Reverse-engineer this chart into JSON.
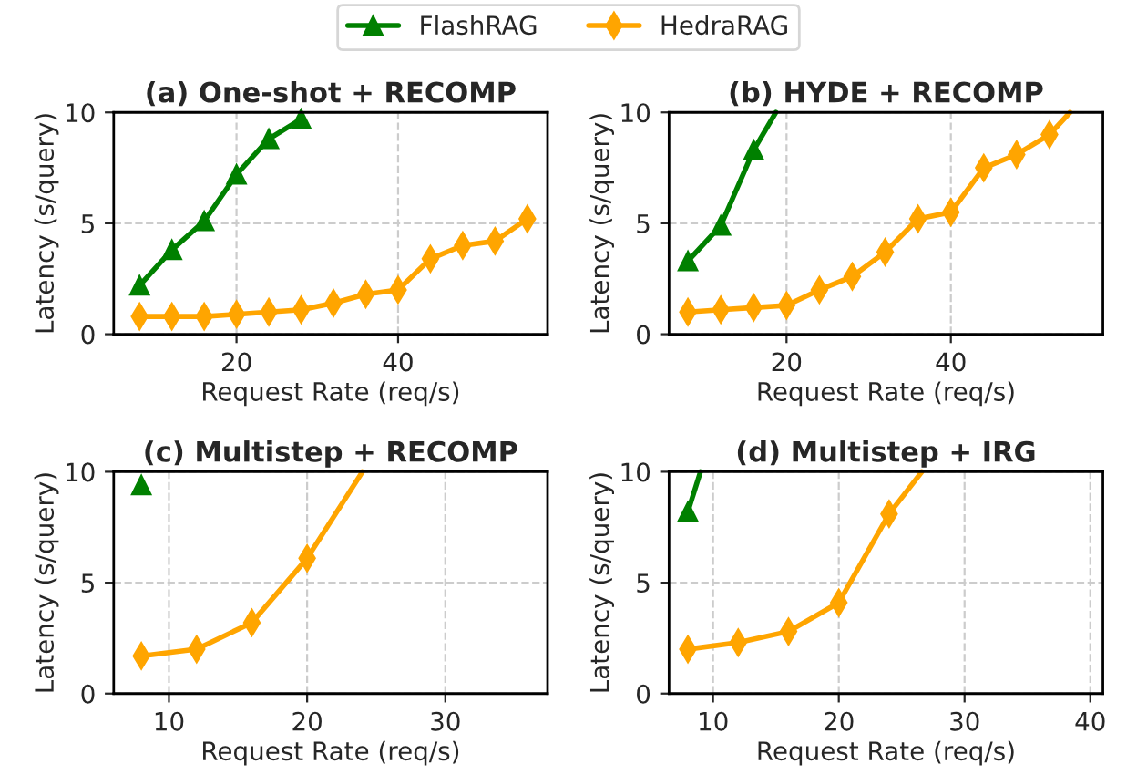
{
  "chart_data": [
    {
      "type": "line",
      "title": "(a) One-shot + RECOMP",
      "xlabel": "Request Rate (req/s)",
      "ylabel": "Latency (s/query)",
      "xlim": [
        4.8,
        58.5
      ],
      "xticks": [
        20,
        40
      ],
      "ylim": [
        0,
        10
      ],
      "yticks": [
        0,
        5,
        10
      ],
      "grid": true,
      "legend": "top",
      "line_style": "solid",
      "series": [
        {
          "name": "FlashRAG",
          "color": "#008000",
          "marker": "triangle",
          "x": [
            8,
            12,
            16,
            20,
            24,
            28
          ],
          "values": [
            2.2,
            3.8,
            5.1,
            7.2,
            8.8,
            9.7
          ]
        },
        {
          "name": "HedraRAG",
          "color": "#ffa500",
          "marker": "diamond",
          "x": [
            8,
            12,
            16,
            20,
            24,
            28,
            32,
            36,
            40,
            44,
            48,
            52,
            56
          ],
          "values": [
            0.8,
            0.8,
            0.8,
            0.9,
            1.0,
            1.1,
            1.4,
            1.8,
            2.0,
            3.4,
            4.0,
            4.2,
            5.2
          ]
        }
      ]
    },
    {
      "type": "line",
      "title": "(b) HYDE + RECOMP",
      "xlabel": "Request Rate (req/s)",
      "ylabel": "Latency (s/query)",
      "xlim": [
        5.7,
        58.5
      ],
      "xticks": [
        20,
        40
      ],
      "ylim": [
        0,
        10
      ],
      "yticks": [
        0,
        5,
        10
      ],
      "grid": true,
      "line_style": "solid",
      "series": [
        {
          "name": "FlashRAG",
          "color": "#008000",
          "marker": "triangle",
          "x": [
            8,
            12,
            16,
            18.7
          ],
          "values": [
            3.3,
            4.9,
            8.3,
            10
          ]
        },
        {
          "name": "HedraRAG",
          "color": "#ffa500",
          "marker": "diamond",
          "x": [
            8,
            12,
            16,
            20,
            24,
            28,
            32,
            36,
            40,
            44,
            48,
            52,
            54.5
          ],
          "values": [
            1.0,
            1.1,
            1.2,
            1.3,
            2.0,
            2.6,
            3.7,
            5.2,
            5.5,
            7.5,
            8.1,
            9.0,
            10
          ]
        }
      ]
    },
    {
      "type": "line",
      "title": "(c) Multistep + RECOMP",
      "xlabel": "Request Rate (req/s)",
      "ylabel": "Latency (s/query)",
      "xlim": [
        6.0,
        37.4
      ],
      "xticks": [
        10,
        20,
        30
      ],
      "ylim": [
        0,
        10
      ],
      "yticks": [
        0,
        5,
        10
      ],
      "grid": true,
      "line_style": "solid",
      "series": [
        {
          "name": "FlashRAG",
          "color": "#008000",
          "marker": "triangle",
          "x": [
            8
          ],
          "values": [
            9.4
          ]
        },
        {
          "name": "HedraRAG",
          "color": "#ffa500",
          "marker": "diamond",
          "x": [
            8,
            12,
            16,
            20,
            24
          ],
          "values": [
            1.7,
            2.0,
            3.2,
            6.1,
            10.0
          ]
        }
      ]
    },
    {
      "type": "line",
      "title": "(d) Multistep + IRG",
      "xlabel": "Request Rate (req/s)",
      "ylabel": "Latency (s/query)",
      "xlim": [
        6.5,
        41
      ],
      "xticks": [
        10,
        20,
        30,
        40
      ],
      "ylim": [
        0,
        10
      ],
      "yticks": [
        0,
        5,
        10
      ],
      "grid": true,
      "line_style": "solid",
      "series": [
        {
          "name": "FlashRAG",
          "color": "#008000",
          "marker": "triangle",
          "x": [
            8,
            9.0
          ],
          "values": [
            8.2,
            10
          ]
        },
        {
          "name": "HedraRAG",
          "color": "#ffa500",
          "marker": "diamond",
          "x": [
            8,
            12,
            16,
            20,
            24,
            26.6
          ],
          "values": [
            2.0,
            2.3,
            2.8,
            4.1,
            8.1,
            10
          ]
        }
      ]
    }
  ]
}
